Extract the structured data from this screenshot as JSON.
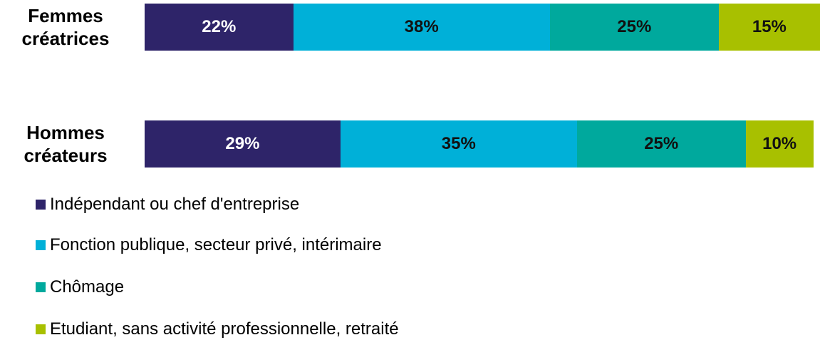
{
  "chart_data": {
    "type": "stacked_bar_horizontal",
    "categories": [
      "Femmes créatrices",
      "Hommes créateurs"
    ],
    "xlim": [
      0,
      100
    ],
    "series": [
      {
        "name": "Indépendant ou chef d'entreprise",
        "color": "#2e2469",
        "values": [
          22,
          29
        ],
        "value_labels": [
          "22%",
          "29%"
        ]
      },
      {
        "name": "Fonction publique, secteur privé, intérimaire",
        "color": "#00b0d8",
        "values": [
          38,
          35
        ],
        "value_labels": [
          "38%",
          "35%"
        ]
      },
      {
        "name": "Chômage",
        "color": "#00a99d",
        "values": [
          25,
          25
        ],
        "value_labels": [
          "25%",
          "25%"
        ]
      },
      {
        "name": "Etudiant, sans activité professionnelle, retraité",
        "color": "#a8c000",
        "values": [
          15,
          10
        ],
        "value_labels": [
          "15%",
          "10%"
        ]
      }
    ],
    "legend": "bottom-left"
  }
}
